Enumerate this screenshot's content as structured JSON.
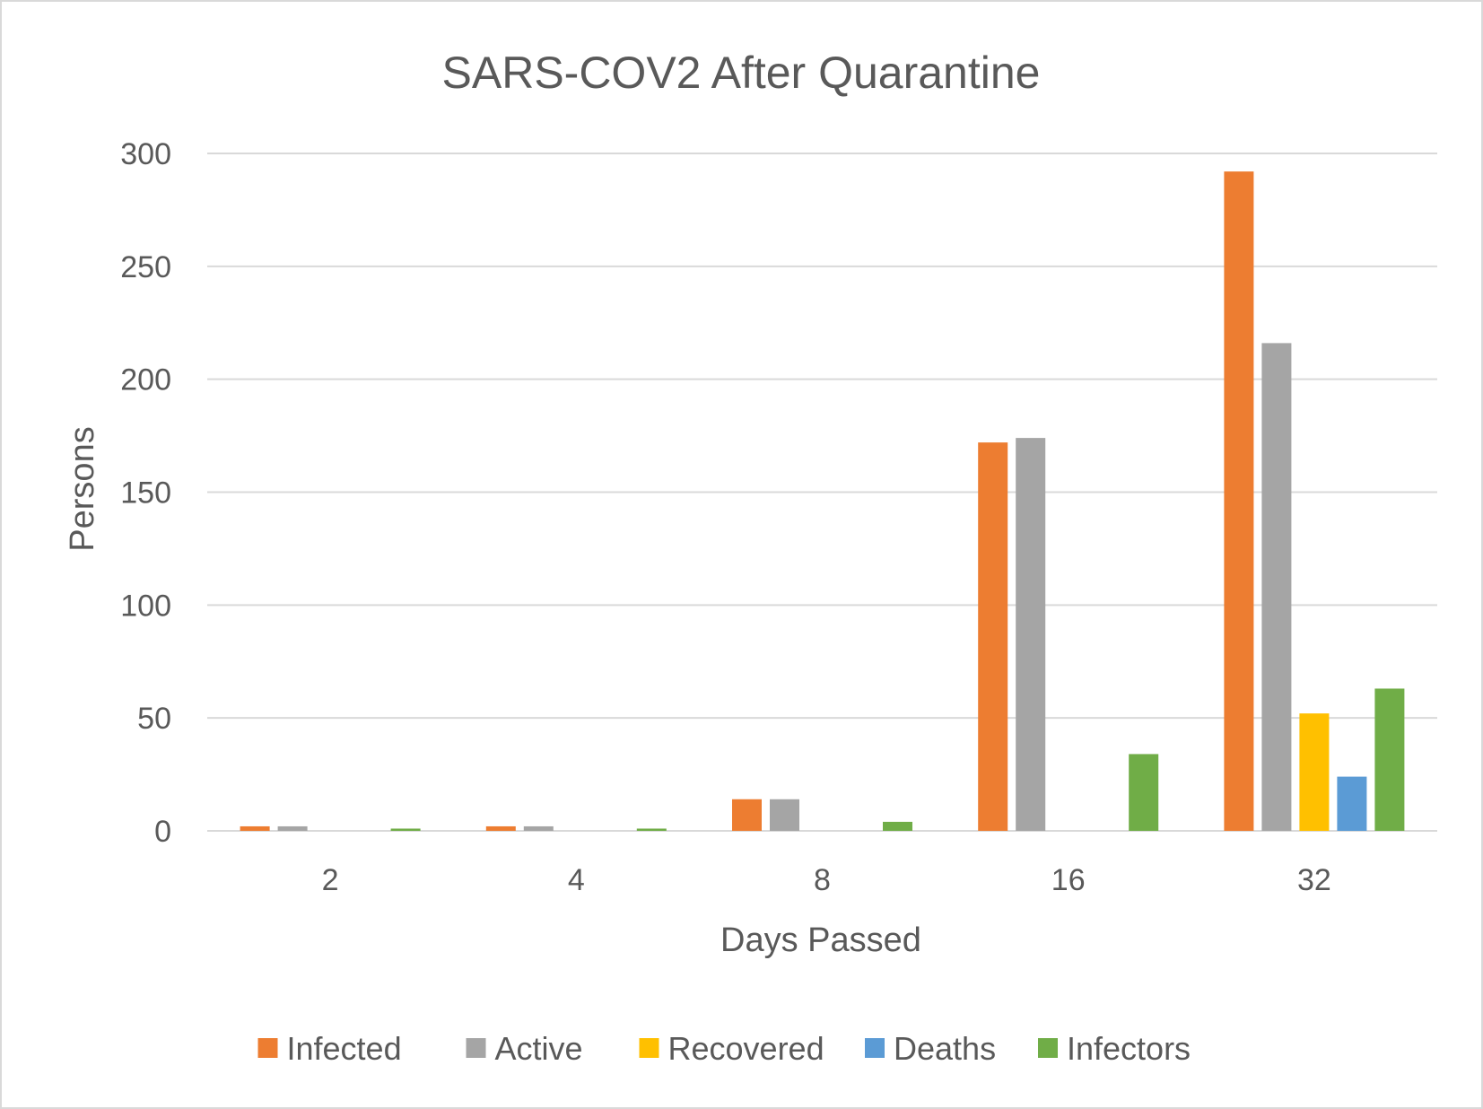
{
  "chart_data": {
    "type": "bar",
    "title": "SARS-COV2 After Quarantine",
    "xlabel": "Days Passed",
    "ylabel": "Persons",
    "categories": [
      "2",
      "4",
      "8",
      "16",
      "32"
    ],
    "ylim": [
      0,
      300
    ],
    "yticks": [
      0,
      50,
      100,
      150,
      200,
      250,
      300
    ],
    "grid": true,
    "legend_position": "bottom",
    "series": [
      {
        "name": "Infected",
        "color": "#ED7D31",
        "values": [
          2,
          2,
          14,
          172,
          292
        ]
      },
      {
        "name": "Active",
        "color": "#A5A5A5",
        "values": [
          2,
          2,
          14,
          174,
          216
        ]
      },
      {
        "name": "Recovered",
        "color": "#FFC000",
        "values": [
          0,
          0,
          0,
          0,
          52
        ]
      },
      {
        "name": "Deaths",
        "color": "#5B9BD5",
        "values": [
          0,
          0,
          0,
          0,
          24
        ]
      },
      {
        "name": "Infectors",
        "color": "#70AD47",
        "values": [
          1,
          1,
          4,
          34,
          63
        ]
      }
    ]
  }
}
